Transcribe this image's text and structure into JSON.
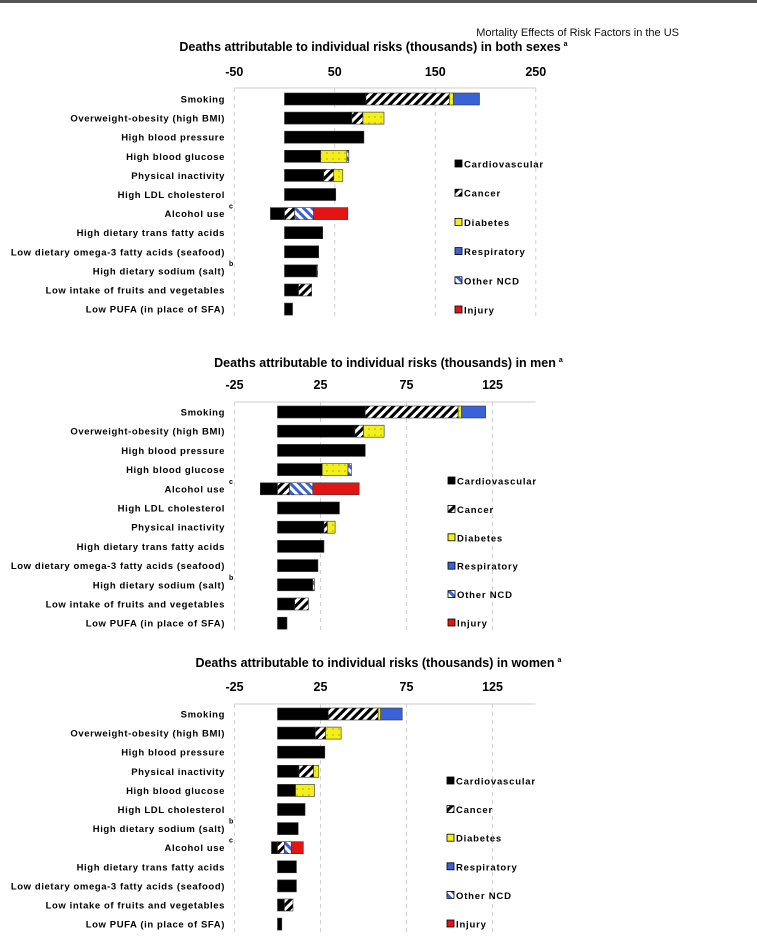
{
  "running_head": "Mortality Effects of Risk Factors in the US",
  "colors": {
    "Cardiovascular": "#000000",
    "Cancer": "hatch-black",
    "Diabetes": "#f2ef1a",
    "Respiratory": "#3a62d8",
    "Other NCD": "hatch-blue",
    "Injury": "#e31414"
  },
  "chart_data": [
    {
      "type": "bar",
      "orientation": "horizontal",
      "stacked": true,
      "title": "Deaths attributable to individual risks (thousands) in both sexes",
      "title_superscript": "a",
      "xticks": [
        "-50",
        "50",
        "150",
        "250"
      ],
      "xlim": [
        -50,
        250
      ],
      "grid": true,
      "legend": "right",
      "series_names": [
        "Cardiovascular",
        "Cancer",
        "Diabetes",
        "Respiratory",
        "Other NCD",
        "Injury"
      ],
      "categories": [
        {
          "label": "Smoking",
          "sup": "",
          "neg": 0,
          "values": [
            81,
            83,
            4,
            26,
            0,
            0
          ]
        },
        {
          "label": "Overweight-obesity (high BMI)",
          "sup": "",
          "neg": 0,
          "values": [
            67,
            11,
            21,
            0,
            0,
            0
          ]
        },
        {
          "label": "High blood pressure",
          "sup": "",
          "neg": 0,
          "values": [
            79,
            0,
            0,
            0,
            0,
            0
          ]
        },
        {
          "label": "High blood glucose",
          "sup": "",
          "neg": 0,
          "values": [
            36,
            0,
            26,
            0,
            2,
            0
          ]
        },
        {
          "label": "Physical inactivity",
          "sup": "",
          "neg": 0,
          "values": [
            39,
            10,
            9,
            0,
            0,
            0
          ]
        },
        {
          "label": "High LDL cholesterol",
          "sup": "",
          "neg": 0,
          "values": [
            51,
            0,
            0,
            0,
            0,
            0
          ]
        },
        {
          "label": "Alcohol use",
          "sup": "c",
          "neg": -14,
          "values": [
            0,
            10,
            0,
            0,
            19,
            34
          ]
        },
        {
          "label": "High dietary trans fatty acids",
          "sup": "",
          "neg": 0,
          "values": [
            38,
            0,
            0,
            0,
            0,
            0
          ]
        },
        {
          "label": "Low dietary omega-3 fatty acids (seafood)",
          "sup": "",
          "neg": 0,
          "values": [
            34,
            0,
            0,
            0,
            0,
            0
          ]
        },
        {
          "label": "High dietary sodium (salt)",
          "sup": "b",
          "neg": 0,
          "values": [
            32,
            0,
            0,
            0,
            1,
            0
          ]
        },
        {
          "label": "Low intake of fruits and vegetables",
          "sup": "",
          "neg": 0,
          "values": [
            14,
            13,
            0,
            0,
            0,
            0
          ]
        },
        {
          "label": "Low PUFA (in place of SFA)",
          "sup": "",
          "neg": 0,
          "values": [
            8,
            0,
            0,
            0,
            0,
            0
          ]
        }
      ]
    },
    {
      "type": "bar",
      "orientation": "horizontal",
      "stacked": true,
      "title": "Deaths attributable to individual risks (thousands) in men",
      "title_superscript": "a",
      "xticks": [
        "-25",
        "25",
        "75",
        "125"
      ],
      "xlim": [
        -25,
        150
      ],
      "grid": true,
      "legend": "right",
      "series_names": [
        "Cardiovascular",
        "Cancer",
        "Diabetes",
        "Respiratory",
        "Other NCD",
        "Injury"
      ],
      "categories": [
        {
          "label": "Smoking",
          "sup": "",
          "neg": 0,
          "values": [
            51,
            54,
            2,
            14,
            0,
            0
          ]
        },
        {
          "label": "Overweight-obesity (high BMI)",
          "sup": "",
          "neg": 0,
          "values": [
            45,
            5,
            12,
            0,
            0,
            0
          ]
        },
        {
          "label": "High blood pressure",
          "sup": "",
          "neg": 0,
          "values": [
            51,
            0,
            0,
            0,
            0,
            0
          ]
        },
        {
          "label": "High blood glucose",
          "sup": "",
          "neg": 0,
          "values": [
            26,
            0,
            15,
            0,
            2,
            0
          ]
        },
        {
          "label": "Alcohol use",
          "sup": "c",
          "neg": -10,
          "values": [
            0,
            7,
            0,
            0,
            13.5,
            27
          ]
        },
        {
          "label": "High LDL cholesterol",
          "sup": "",
          "neg": 0,
          "values": [
            36,
            0,
            0,
            0,
            0,
            0
          ]
        },
        {
          "label": "Physical inactivity",
          "sup": "",
          "neg": 0,
          "values": [
            27,
            2,
            4.5,
            0,
            0,
            0
          ]
        },
        {
          "label": "High dietary trans fatty acids",
          "sup": "",
          "neg": 0,
          "values": [
            27,
            0,
            0,
            0,
            0,
            0
          ]
        },
        {
          "label": "Low dietary omega-3 fatty acids (seafood)",
          "sup": "",
          "neg": 0,
          "values": [
            23.5,
            0,
            0,
            0,
            0,
            0
          ]
        },
        {
          "label": "High dietary sodium (salt)",
          "sup": "b",
          "neg": 0,
          "values": [
            20.5,
            0,
            0,
            0,
            1,
            0
          ]
        },
        {
          "label": "Low intake of fruits and vegetables",
          "sup": "",
          "neg": 0,
          "values": [
            10,
            8,
            0,
            0,
            0,
            0
          ]
        },
        {
          "label": "Low PUFA (in place of SFA)",
          "sup": "",
          "neg": 0,
          "values": [
            5.5,
            0,
            0,
            0,
            0,
            0
          ]
        }
      ]
    },
    {
      "type": "bar",
      "orientation": "horizontal",
      "stacked": true,
      "title": "Deaths attributable to individual risks (thousands) in women",
      "title_superscript": "a",
      "xticks": [
        "-25",
        "25",
        "75",
        "125"
      ],
      "xlim": [
        -25,
        150
      ],
      "grid": true,
      "legend": "right",
      "series_names": [
        "Cardiovascular",
        "Cancer",
        "Diabetes",
        "Respiratory",
        "Other NCD",
        "Injury"
      ],
      "categories": [
        {
          "label": "Smoking",
          "sup": "",
          "neg": 0,
          "values": [
            29.5,
            29,
            1.5,
            12.5,
            0,
            0
          ]
        },
        {
          "label": "Overweight-obesity (high BMI)",
          "sup": "",
          "neg": 0,
          "values": [
            22,
            6,
            9,
            0,
            0,
            0
          ]
        },
        {
          "label": "High blood pressure",
          "sup": "",
          "neg": 0,
          "values": [
            27.5,
            0,
            0,
            0,
            0,
            0
          ]
        },
        {
          "label": "Physical inactivity",
          "sup": "",
          "neg": 0,
          "values": [
            12.5,
            8.5,
            3,
            0,
            0,
            0
          ]
        },
        {
          "label": "High blood glucose",
          "sup": "",
          "neg": 0,
          "values": [
            10.5,
            0,
            11,
            0,
            0,
            0
          ]
        },
        {
          "label": "High LDL cholesterol",
          "sup": "",
          "neg": 0,
          "values": [
            16,
            0,
            0,
            0,
            0,
            0
          ]
        },
        {
          "label": "High dietary sodium (salt)",
          "sup": "b",
          "neg": 0,
          "values": [
            12,
            0,
            0,
            0,
            0,
            0
          ]
        },
        {
          "label": "Alcohol use",
          "sup": "c",
          "neg": -3.5,
          "values": [
            0,
            4,
            0,
            0,
            4,
            7
          ]
        },
        {
          "label": "High dietary trans fatty acids",
          "sup": "",
          "neg": 0,
          "values": [
            11,
            0,
            0,
            0,
            0,
            0
          ]
        },
        {
          "label": "Low dietary omega-3 fatty acids (seafood)",
          "sup": "",
          "neg": 0,
          "values": [
            11,
            0,
            0,
            0,
            0,
            0
          ]
        },
        {
          "label": "Low intake of fruits and vegetables",
          "sup": "",
          "neg": 0,
          "values": [
            4,
            5,
            0,
            0,
            0,
            0
          ]
        },
        {
          "label": "Low PUFA (in place of SFA)",
          "sup": "",
          "neg": 0,
          "values": [
            2.5,
            0,
            0,
            0,
            0,
            0
          ]
        }
      ]
    }
  ]
}
